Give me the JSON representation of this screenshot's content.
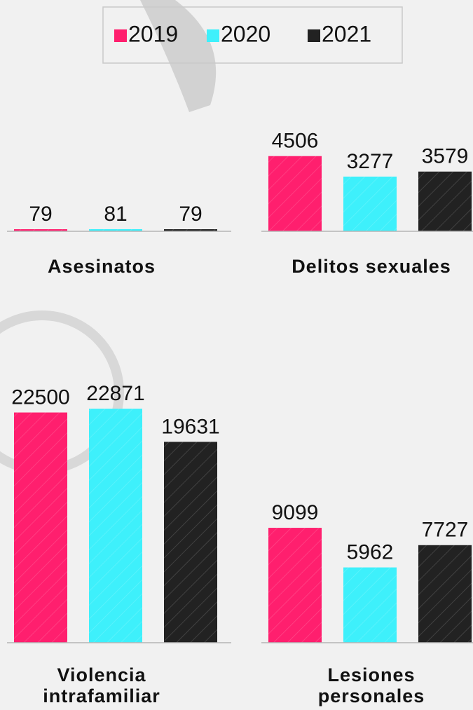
{
  "legend": {
    "names": [
      "2019",
      "2020",
      "2021"
    ],
    "colors": [
      "#ff1f6e",
      "#3ef0fb",
      "#222222"
    ]
  },
  "chart_data": [
    {
      "type": "bar",
      "title": "Asesinatos",
      "values": [
        79,
        81,
        79
      ],
      "ylim": [
        0,
        8000
      ]
    },
    {
      "type": "bar",
      "title": "Delitos sexuales",
      "values": [
        4506,
        3277,
        3579
      ],
      "ylim": [
        0,
        12600
      ]
    },
    {
      "type": "bar",
      "title": "Violencia intrafamiliar",
      "values": [
        22500,
        22871,
        19631
      ],
      "ylim": [
        0,
        27400
      ]
    },
    {
      "type": "bar",
      "title": "Lesiones personales",
      "values": [
        9099,
        5962,
        7727
      ],
      "ylim": [
        0,
        22200
      ]
    }
  ]
}
